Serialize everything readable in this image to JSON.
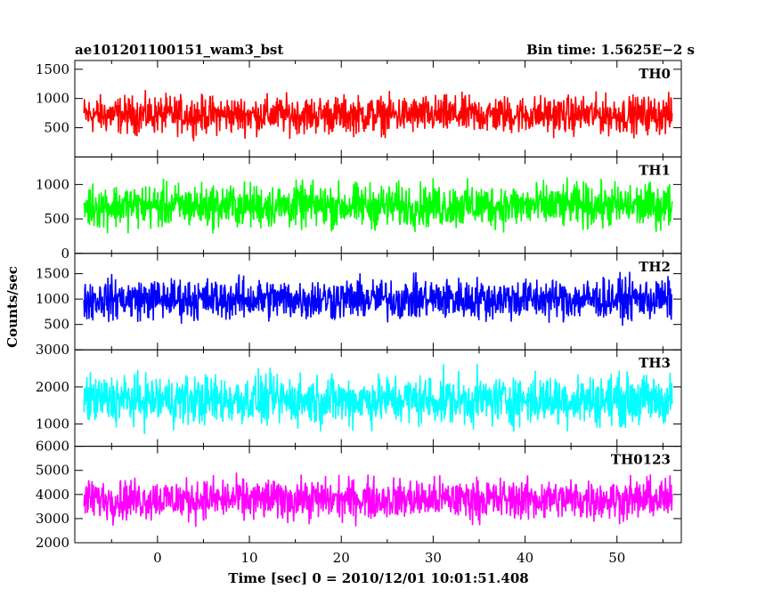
{
  "header": {
    "left_title": "ae101201100151_wam3_bst",
    "right_title": "Bin time: 1.5625E−2 s"
  },
  "chart_data": {
    "type": "line",
    "xlabel": "Time [sec] 0 = 2010/12/01 10:01:51.408",
    "ylabel": "Counts/sec",
    "xlim": [
      -9,
      57
    ],
    "x_data_range": [
      -8,
      56
    ],
    "x_ticks": [
      0,
      10,
      20,
      30,
      40,
      50
    ],
    "bin_time_s": 0.015625,
    "grid": false,
    "panels": [
      {
        "name": "TH0",
        "color": "#ff0000",
        "ylim": [
          0,
          1650
        ],
        "y_ticks": [
          500,
          1000,
          1500
        ],
        "mean": 720,
        "spread": 380
      },
      {
        "name": "TH1",
        "color": "#00ff00",
        "ylim": [
          0,
          1400
        ],
        "y_ticks": [
          0,
          500,
          1000
        ],
        "mean": 690,
        "spread": 380
      },
      {
        "name": "TH2",
        "color": "#0000ff",
        "ylim": [
          0,
          1900
        ],
        "y_ticks": [
          500,
          1000,
          1500
        ],
        "mean": 1000,
        "spread": 480
      },
      {
        "name": "TH3",
        "color": "#00ffff",
        "ylim": [
          400,
          3000
        ],
        "y_ticks": [
          1000,
          2000,
          3000
        ],
        "mean": 1650,
        "spread": 800
      },
      {
        "name": "TH0123",
        "color": "#ff00ff",
        "ylim": [
          2000,
          6000
        ],
        "y_ticks": [
          2000,
          3000,
          4000,
          5000,
          6000
        ],
        "mean": 3800,
        "spread": 1000
      }
    ]
  }
}
